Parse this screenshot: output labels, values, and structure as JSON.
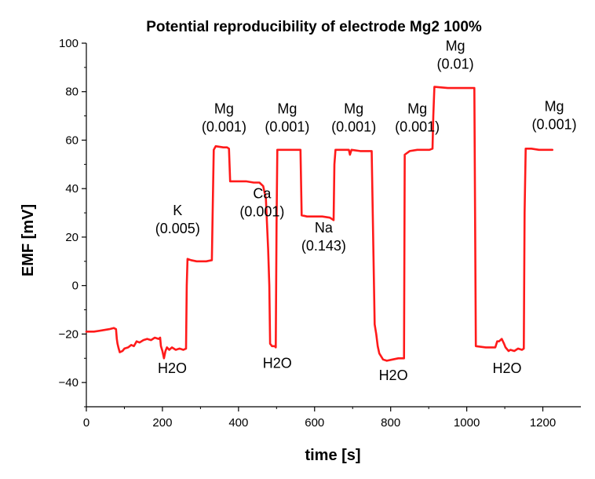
{
  "chart_data": {
    "type": "line",
    "title": "Potential reproducibility of electrode Mg2 100%",
    "xlabel": "time [s]",
    "ylabel": "EMF [mV]",
    "xlim": [
      0,
      1300
    ],
    "ylim": [
      -50,
      100
    ],
    "x_ticks": [
      0,
      200,
      400,
      600,
      800,
      1000,
      1200
    ],
    "y_ticks": [
      -40,
      -20,
      0,
      20,
      40,
      60,
      80,
      100
    ],
    "line_color": "#ff1a1a",
    "series": [
      {
        "name": "EMF",
        "points": [
          [
            0,
            -19
          ],
          [
            20,
            -19
          ],
          [
            40,
            -18.5
          ],
          [
            60,
            -18
          ],
          [
            72,
            -17.5
          ],
          [
            78,
            -18
          ],
          [
            80,
            -22
          ],
          [
            82,
            -24
          ],
          [
            85,
            -26
          ],
          [
            88,
            -27.5
          ],
          [
            95,
            -27
          ],
          [
            100,
            -26
          ],
          [
            110,
            -25.5
          ],
          [
            118,
            -24.5
          ],
          [
            125,
            -25
          ],
          [
            132,
            -23
          ],
          [
            140,
            -23.5
          ],
          [
            150,
            -22.5
          ],
          [
            160,
            -22
          ],
          [
            170,
            -22.5
          ],
          [
            180,
            -21.5
          ],
          [
            190,
            -22
          ],
          [
            194,
            -21.5
          ],
          [
            196,
            -25
          ],
          [
            200,
            -27
          ],
          [
            204,
            -30
          ],
          [
            208,
            -27
          ],
          [
            212,
            -25.5
          ],
          [
            218,
            -26.5
          ],
          [
            225,
            -25.5
          ],
          [
            235,
            -26.5
          ],
          [
            245,
            -26
          ],
          [
            255,
            -26.5
          ],
          [
            262,
            -26
          ],
          [
            264,
            0
          ],
          [
            266,
            11
          ],
          [
            275,
            10.5
          ],
          [
            290,
            10
          ],
          [
            315,
            10
          ],
          [
            330,
            10.5
          ],
          [
            332,
            30
          ],
          [
            335,
            56
          ],
          [
            340,
            57.5
          ],
          [
            360,
            57
          ],
          [
            370,
            57
          ],
          [
            375,
            56.5
          ],
          [
            378,
            43
          ],
          [
            395,
            43
          ],
          [
            420,
            43
          ],
          [
            440,
            42.5
          ],
          [
            455,
            42.5
          ],
          [
            465,
            41
          ],
          [
            472,
            36
          ],
          [
            478,
            15
          ],
          [
            481,
            0
          ],
          [
            483,
            -24
          ],
          [
            488,
            -25
          ],
          [
            495,
            -25
          ],
          [
            498,
            -25.5
          ],
          [
            500,
            25
          ],
          [
            502,
            56
          ],
          [
            520,
            56
          ],
          [
            545,
            56
          ],
          [
            563,
            56
          ],
          [
            566,
            29
          ],
          [
            580,
            28.5
          ],
          [
            600,
            28.5
          ],
          [
            620,
            28.5
          ],
          [
            640,
            28
          ],
          [
            650,
            27
          ],
          [
            652,
            50
          ],
          [
            655,
            56
          ],
          [
            670,
            56
          ],
          [
            690,
            56
          ],
          [
            693,
            54
          ],
          [
            697,
            56
          ],
          [
            720,
            55.5
          ],
          [
            740,
            55.5
          ],
          [
            750,
            55.5
          ],
          [
            758,
            -16
          ],
          [
            762,
            -20
          ],
          [
            766,
            -25
          ],
          [
            770,
            -28
          ],
          [
            780,
            -30.5
          ],
          [
            790,
            -31
          ],
          [
            805,
            -30.5
          ],
          [
            820,
            -30
          ],
          [
            835,
            -30
          ],
          [
            837,
            54
          ],
          [
            850,
            55.5
          ],
          [
            870,
            56
          ],
          [
            885,
            56
          ],
          [
            902,
            56
          ],
          [
            910,
            56.5
          ],
          [
            912,
            70
          ],
          [
            915,
            82
          ],
          [
            950,
            81.5
          ],
          [
            990,
            81.5
          ],
          [
            1010,
            81.5
          ],
          [
            1020,
            81.5
          ],
          [
            1024,
            -25
          ],
          [
            1050,
            -25.5
          ],
          [
            1075,
            -25.5
          ],
          [
            1080,
            -23
          ],
          [
            1085,
            -23
          ],
          [
            1092,
            -22
          ],
          [
            1098,
            -24
          ],
          [
            1102,
            -25.5
          ],
          [
            1110,
            -27
          ],
          [
            1115,
            -26.5
          ],
          [
            1125,
            -27
          ],
          [
            1135,
            -26
          ],
          [
            1145,
            -26.5
          ],
          [
            1150,
            -26
          ],
          [
            1152,
            30
          ],
          [
            1155,
            56.5
          ],
          [
            1170,
            56.5
          ],
          [
            1190,
            56
          ],
          [
            1210,
            56
          ],
          [
            1225,
            56
          ]
        ]
      }
    ],
    "annotations": [
      {
        "lines": [
          "K",
          "(0.005)"
        ],
        "x": 240,
        "y": 29
      },
      {
        "lines": [
          "Mg",
          "(0.001)"
        ],
        "x": 362,
        "y": 71
      },
      {
        "lines": [
          "Ca",
          "(0.001)"
        ],
        "x": 462,
        "y": 36
      },
      {
        "lines": [
          "Mg",
          "(0.001)"
        ],
        "x": 528,
        "y": 71
      },
      {
        "lines": [
          "Na",
          "(0.143)"
        ],
        "x": 624,
        "y": 22
      },
      {
        "lines": [
          "Mg",
          "(0.001)"
        ],
        "x": 703,
        "y": 71
      },
      {
        "lines": [
          "Mg",
          "(0.001)"
        ],
        "x": 870,
        "y": 71
      },
      {
        "lines": [
          "Mg",
          "(0.01)"
        ],
        "x": 970,
        "y": 97
      },
      {
        "lines": [
          "Mg",
          "(0.001)"
        ],
        "x": 1230,
        "y": 72
      },
      {
        "lines": [
          "H2O"
        ],
        "x": 226,
        "y": -36
      },
      {
        "lines": [
          "H2O"
        ],
        "x": 502,
        "y": -34
      },
      {
        "lines": [
          "H2O"
        ],
        "x": 807,
        "y": -39
      },
      {
        "lines": [
          "H2O"
        ],
        "x": 1106,
        "y": -36
      }
    ]
  }
}
